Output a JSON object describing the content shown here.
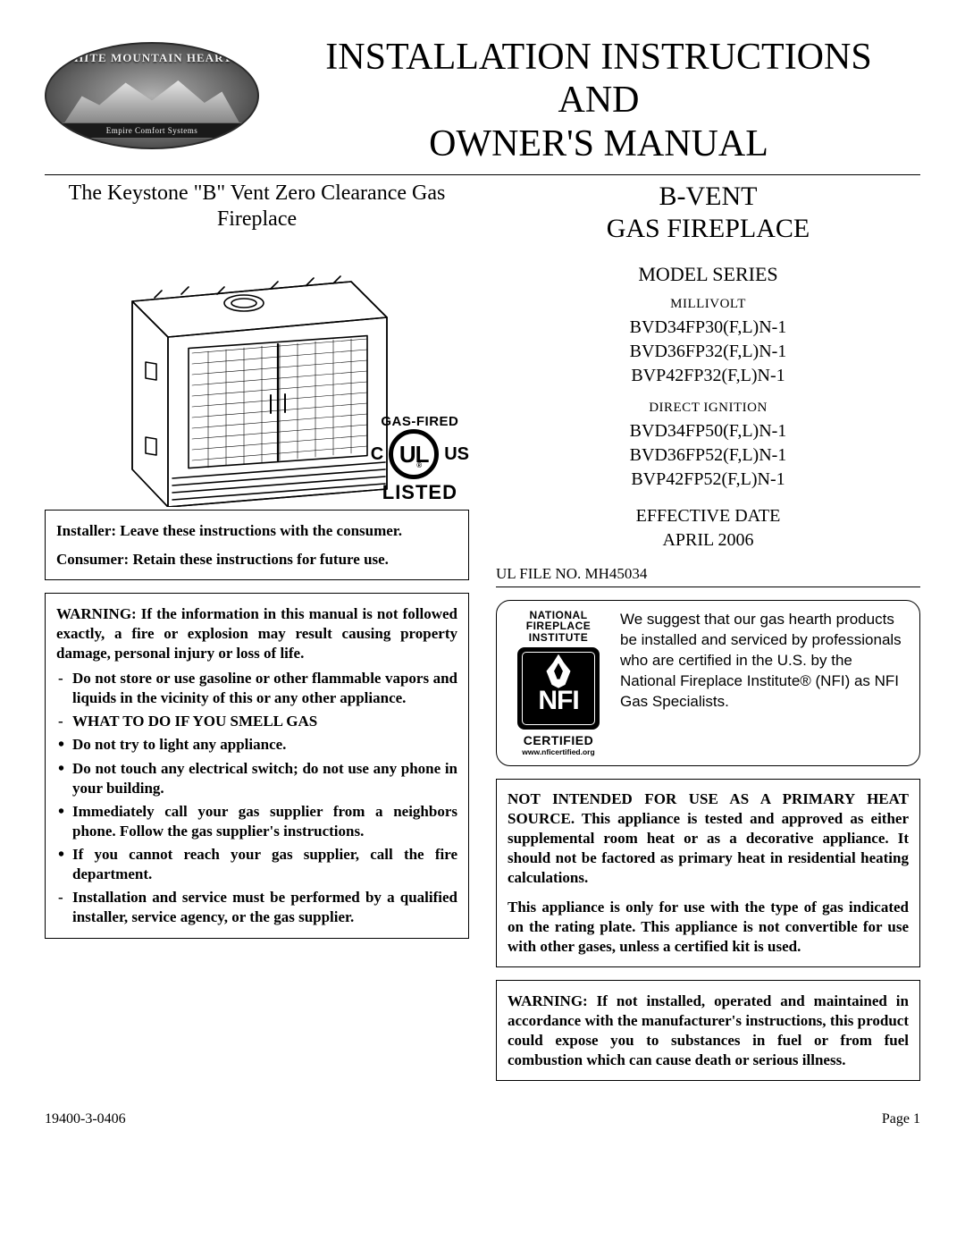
{
  "colors": {
    "text": "#000000",
    "background": "#ffffff",
    "border": "#000000"
  },
  "logo": {
    "arc_text": "WHITE MOUNTAIN HEARTH",
    "banner_text": "Empire Comfort Systems"
  },
  "main_title_line1": "INSTALLATION INSTRUCTIONS",
  "main_title_line2": "AND",
  "main_title_line3": "OWNER'S MANUAL",
  "left": {
    "product_subtitle_line1": "The Keystone \"B\" Vent Zero Clearance Gas",
    "product_subtitle_line2": "Fireplace",
    "gas_fired": "GAS-FIRED",
    "ul_mark": {
      "letters": "UL",
      "c": "C",
      "us": "US",
      "listed": "LISTED",
      "reg": "®"
    },
    "notice_box": {
      "installer": "Installer: Leave these instructions with the consumer.",
      "consumer": "Consumer: Retain these instructions for future use."
    },
    "warn_box": {
      "heading": "WARNING: If the information in this manual is not followed exactly, a fire or explosion may result causing property damage, personal injury or loss of life.",
      "items": [
        {
          "style": "dash",
          "text": "Do not store or use gasoline or other flammable vapors and liquids in the vicinity of this or any other appliance."
        },
        {
          "style": "dash",
          "text": "WHAT TO DO IF YOU SMELL GAS"
        },
        {
          "style": "bullet",
          "text": "Do not try to light any appliance."
        },
        {
          "style": "bullet",
          "text": "Do not touch any electrical switch; do not use any phone in your building."
        },
        {
          "style": "bullet",
          "text": "Immediately call your gas supplier from a neighbors phone. Follow the gas supplier's instructions."
        },
        {
          "style": "bullet",
          "text": "If you cannot reach your gas supplier, call the fire department."
        },
        {
          "style": "dash",
          "text": "Installation and service must be performed by a qualified installer, service agency, or the gas supplier."
        }
      ]
    }
  },
  "right": {
    "title_line1": "B-VENT",
    "title_line2": "GAS FIREPLACE",
    "model_heading": "MODEL SERIES",
    "millivolt_label": "MILLIVOLT",
    "millivolt_models": [
      "BVD34FP30(F,L)N-1",
      "BVD36FP32(F,L)N-1",
      "BVP42FP32(F,L)N-1"
    ],
    "direct_ignition_label": "DIRECT IGNITION",
    "direct_ignition_models": [
      "BVD34FP50(F,L)N-1",
      "BVD36FP52(F,L)N-1",
      "BVP42FP52(F,L)N-1"
    ],
    "effective_date_label": "EFFECTIVE DATE",
    "effective_date_value": "APRIL 2006",
    "ul_file": "UL FILE NO. MH45034",
    "nfi": {
      "top1": "NATIONAL",
      "top2": "FIREPLACE",
      "top3": "INSTITUTE",
      "letters": "NFI",
      "certified": "CERTIFIED",
      "url": "www.nficertified.org",
      "body": "We suggest that our gas hearth products be installed and serviced by professionals who are certified in the U.S. by the National Fireplace Institute® (NFI) as NFI Gas Specialists."
    },
    "heat_box": {
      "p1": "NOT INTENDED FOR USE AS A PRIMARY HEAT SOURCE. This appliance is tested and approved as either supplemental room heat or as a decorative appliance. It should not be factored as primary heat in residential heating calculations.",
      "p2": "This appliance is only for use with the type of gas indicated on the rating plate. This appliance is not convertible for use with other gases, unless a certified kit is used."
    },
    "maint_box": "WARNING: If not installed, operated and maintained in accordance with the manufacturer's instructions, this product could expose you to substances in fuel or from fuel combustion which can cause death or serious illness."
  },
  "footer": {
    "left": "19400-3-0406",
    "right": "Page 1"
  }
}
